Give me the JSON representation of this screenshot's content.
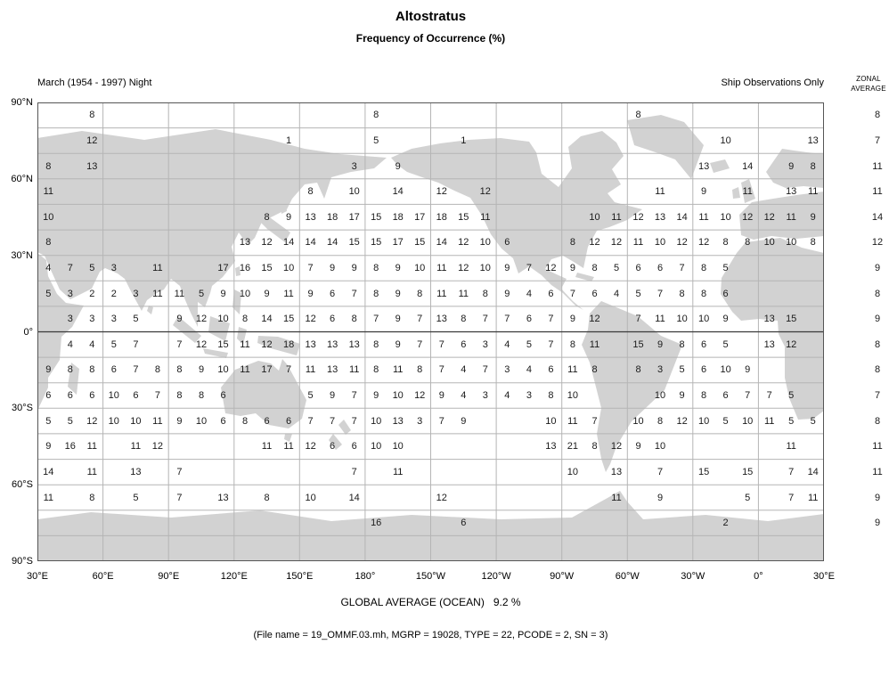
{
  "chart_data": {
    "type": "heatmap",
    "title": "Altostratus",
    "subtitle": "Frequency of Occurrence (%)",
    "period_label": "March (1954 - 1997) Night",
    "source_label": "Ship Observations Only",
    "zonal_header": {
      "line1": "ZONAL",
      "line2": "AVERAGE"
    },
    "global_average_label": "GLOBAL AVERAGE (OCEAN)   9.2 %",
    "global_average_percent": 9.2,
    "file_info": "(File name = 19_OMMF.03.mh, MGRP = 19028, TYPE = 22, PCODE = 2, SN = 3)",
    "grid": {
      "cols": 36,
      "rows": 18,
      "cell_deg": 10,
      "gridlines": "on"
    },
    "lat_ticks": [
      "90°N",
      "60°N",
      "30°N",
      "0°",
      "30°S",
      "60°S",
      "90°S"
    ],
    "lon_ticks": [
      "30°E",
      "60°E",
      "90°E",
      "120°E",
      "150°E",
      "180°",
      "150°W",
      "120°W",
      "90°W",
      "60°W",
      "30°W",
      "0°",
      "30°E"
    ],
    "zonal_averages": [
      8,
      7,
      11,
      11,
      14,
      12,
      9,
      8,
      9,
      8,
      8,
      7,
      8,
      11,
      11,
      9,
      9,
      null
    ],
    "rows": [
      [
        [
          2,
          8
        ],
        [
          15,
          8
        ],
        [
          27,
          8
        ]
      ],
      [
        [
          2,
          12
        ],
        [
          11,
          1
        ],
        [
          15,
          5
        ],
        [
          19,
          1
        ],
        [
          31,
          10
        ],
        [
          35,
          13
        ]
      ],
      [
        [
          0,
          8
        ],
        [
          2,
          13
        ],
        [
          14,
          3
        ],
        [
          16,
          9
        ],
        [
          30,
          13
        ],
        [
          32,
          14
        ],
        [
          34,
          9
        ],
        [
          35,
          8
        ]
      ],
      [
        [
          0,
          11
        ],
        [
          12,
          8
        ],
        [
          14,
          10
        ],
        [
          16,
          14
        ],
        [
          18,
          12
        ],
        [
          20,
          12
        ],
        [
          28,
          11
        ],
        [
          30,
          9
        ],
        [
          32,
          11
        ],
        [
          34,
          13
        ],
        [
          35,
          11
        ]
      ],
      [
        [
          0,
          10
        ],
        [
          10,
          8
        ],
        [
          11,
          9
        ],
        [
          12,
          13
        ],
        [
          13,
          18
        ],
        [
          14,
          17
        ],
        [
          15,
          15
        ],
        [
          16,
          18
        ],
        [
          17,
          17
        ],
        [
          18,
          18
        ],
        [
          19,
          15
        ],
        [
          20,
          11
        ],
        [
          25,
          10
        ],
        [
          26,
          11
        ],
        [
          27,
          12
        ],
        [
          28,
          13
        ],
        [
          29,
          14
        ],
        [
          30,
          11
        ],
        [
          31,
          10
        ],
        [
          32,
          12
        ],
        [
          33,
          12
        ],
        [
          34,
          11
        ],
        [
          35,
          9
        ]
      ],
      [
        [
          0,
          8
        ],
        [
          9,
          13
        ],
        [
          10,
          12
        ],
        [
          11,
          14
        ],
        [
          12,
          14
        ],
        [
          13,
          14
        ],
        [
          14,
          15
        ],
        [
          15,
          15
        ],
        [
          16,
          17
        ],
        [
          17,
          15
        ],
        [
          18,
          14
        ],
        [
          19,
          12
        ],
        [
          20,
          10
        ],
        [
          21,
          6
        ],
        [
          24,
          8
        ],
        [
          25,
          12
        ],
        [
          26,
          12
        ],
        [
          27,
          11
        ],
        [
          28,
          10
        ],
        [
          29,
          12
        ],
        [
          30,
          12
        ],
        [
          31,
          8
        ],
        [
          32,
          8
        ],
        [
          33,
          10
        ],
        [
          34,
          10
        ],
        [
          35,
          8
        ]
      ],
      [
        [
          0,
          4
        ],
        [
          1,
          7
        ],
        [
          2,
          5
        ],
        [
          3,
          3
        ],
        [
          5,
          11
        ],
        [
          8,
          17
        ],
        [
          9,
          16
        ],
        [
          10,
          15
        ],
        [
          11,
          10
        ],
        [
          12,
          7
        ],
        [
          13,
          9
        ],
        [
          14,
          9
        ],
        [
          15,
          8
        ],
        [
          16,
          9
        ],
        [
          17,
          10
        ],
        [
          18,
          11
        ],
        [
          19,
          12
        ],
        [
          20,
          10
        ],
        [
          21,
          9
        ],
        [
          22,
          7
        ],
        [
          23,
          12
        ],
        [
          24,
          9
        ],
        [
          25,
          8
        ],
        [
          26,
          5
        ],
        [
          27,
          6
        ],
        [
          28,
          6
        ],
        [
          29,
          7
        ],
        [
          30,
          8
        ],
        [
          31,
          5
        ]
      ],
      [
        [
          0,
          5
        ],
        [
          1,
          3
        ],
        [
          2,
          2
        ],
        [
          3,
          2
        ],
        [
          4,
          3
        ],
        [
          5,
          11
        ],
        [
          6,
          11
        ],
        [
          7,
          5
        ],
        [
          8,
          9
        ],
        [
          9,
          10
        ],
        [
          10,
          9
        ],
        [
          11,
          11
        ],
        [
          12,
          9
        ],
        [
          13,
          6
        ],
        [
          14,
          7
        ],
        [
          15,
          8
        ],
        [
          16,
          9
        ],
        [
          17,
          8
        ],
        [
          18,
          11
        ],
        [
          19,
          11
        ],
        [
          20,
          8
        ],
        [
          21,
          9
        ],
        [
          22,
          4
        ],
        [
          23,
          6
        ],
        [
          24,
          7
        ],
        [
          25,
          6
        ],
        [
          26,
          4
        ],
        [
          27,
          5
        ],
        [
          28,
          7
        ],
        [
          29,
          8
        ],
        [
          30,
          8
        ],
        [
          31,
          6
        ]
      ],
      [
        [
          1,
          3
        ],
        [
          2,
          3
        ],
        [
          3,
          3
        ],
        [
          4,
          5
        ],
        [
          6,
          9
        ],
        [
          7,
          12
        ],
        [
          8,
          10
        ],
        [
          9,
          8
        ],
        [
          10,
          14
        ],
        [
          11,
          15
        ],
        [
          12,
          12
        ],
        [
          13,
          6
        ],
        [
          14,
          8
        ],
        [
          15,
          7
        ],
        [
          16,
          9
        ],
        [
          17,
          7
        ],
        [
          18,
          13
        ],
        [
          19,
          8
        ],
        [
          20,
          7
        ],
        [
          21,
          7
        ],
        [
          22,
          6
        ],
        [
          23,
          7
        ],
        [
          24,
          9
        ],
        [
          25,
          12
        ],
        [
          27,
          7
        ],
        [
          28,
          11
        ],
        [
          29,
          10
        ],
        [
          30,
          10
        ],
        [
          31,
          9
        ],
        [
          33,
          13
        ],
        [
          34,
          15
        ]
      ],
      [
        [
          1,
          4
        ],
        [
          2,
          4
        ],
        [
          3,
          5
        ],
        [
          4,
          7
        ],
        [
          6,
          7
        ],
        [
          7,
          12
        ],
        [
          8,
          15
        ],
        [
          9,
          11
        ],
        [
          10,
          12
        ],
        [
          11,
          18
        ],
        [
          12,
          13
        ],
        [
          13,
          13
        ],
        [
          14,
          13
        ],
        [
          15,
          8
        ],
        [
          16,
          9
        ],
        [
          17,
          7
        ],
        [
          18,
          7
        ],
        [
          19,
          6
        ],
        [
          20,
          3
        ],
        [
          21,
          4
        ],
        [
          22,
          5
        ],
        [
          23,
          7
        ],
        [
          24,
          8
        ],
        [
          25,
          11
        ],
        [
          27,
          15
        ],
        [
          28,
          9
        ],
        [
          29,
          8
        ],
        [
          30,
          6
        ],
        [
          31,
          5
        ],
        [
          33,
          13
        ],
        [
          34,
          12
        ]
      ],
      [
        [
          0,
          9
        ],
        [
          1,
          8
        ],
        [
          2,
          8
        ],
        [
          3,
          6
        ],
        [
          4,
          7
        ],
        [
          5,
          8
        ],
        [
          6,
          8
        ],
        [
          7,
          9
        ],
        [
          8,
          10
        ],
        [
          9,
          11
        ],
        [
          10,
          17
        ],
        [
          11,
          7
        ],
        [
          12,
          11
        ],
        [
          13,
          13
        ],
        [
          14,
          11
        ],
        [
          15,
          8
        ],
        [
          16,
          11
        ],
        [
          17,
          8
        ],
        [
          18,
          7
        ],
        [
          19,
          4
        ],
        [
          20,
          7
        ],
        [
          21,
          3
        ],
        [
          22,
          4
        ],
        [
          23,
          6
        ],
        [
          24,
          11
        ],
        [
          25,
          8
        ],
        [
          27,
          8
        ],
        [
          28,
          3
        ],
        [
          29,
          5
        ],
        [
          30,
          6
        ],
        [
          31,
          10
        ],
        [
          32,
          9
        ]
      ],
      [
        [
          0,
          6
        ],
        [
          1,
          6
        ],
        [
          2,
          6
        ],
        [
          3,
          10
        ],
        [
          4,
          6
        ],
        [
          5,
          7
        ],
        [
          6,
          8
        ],
        [
          7,
          8
        ],
        [
          8,
          6
        ],
        [
          12,
          5
        ],
        [
          13,
          9
        ],
        [
          14,
          7
        ],
        [
          15,
          9
        ],
        [
          16,
          10
        ],
        [
          17,
          12
        ],
        [
          18,
          9
        ],
        [
          19,
          4
        ],
        [
          20,
          3
        ],
        [
          21,
          4
        ],
        [
          22,
          3
        ],
        [
          23,
          8
        ],
        [
          24,
          10
        ],
        [
          28,
          10
        ],
        [
          29,
          9
        ],
        [
          30,
          8
        ],
        [
          31,
          6
        ],
        [
          32,
          7
        ],
        [
          33,
          7
        ],
        [
          34,
          5
        ]
      ],
      [
        [
          0,
          5
        ],
        [
          1,
          5
        ],
        [
          2,
          12
        ],
        [
          3,
          10
        ],
        [
          4,
          10
        ],
        [
          5,
          11
        ],
        [
          6,
          9
        ],
        [
          7,
          10
        ],
        [
          8,
          6
        ],
        [
          9,
          8
        ],
        [
          10,
          6
        ],
        [
          11,
          6
        ],
        [
          12,
          7
        ],
        [
          13,
          7
        ],
        [
          14,
          7
        ],
        [
          15,
          10
        ],
        [
          16,
          13
        ],
        [
          17,
          3
        ],
        [
          18,
          7
        ],
        [
          19,
          9
        ],
        [
          23,
          10
        ],
        [
          24,
          11
        ],
        [
          25,
          7
        ],
        [
          27,
          10
        ],
        [
          28,
          8
        ],
        [
          29,
          12
        ],
        [
          30,
          10
        ],
        [
          31,
          5
        ],
        [
          32,
          10
        ],
        [
          33,
          11
        ],
        [
          34,
          5
        ],
        [
          35,
          5
        ]
      ],
      [
        [
          0,
          9
        ],
        [
          1,
          16
        ],
        [
          2,
          11
        ],
        [
          4,
          11
        ],
        [
          5,
          12
        ],
        [
          10,
          11
        ],
        [
          11,
          11
        ],
        [
          12,
          12
        ],
        [
          13,
          6
        ],
        [
          14,
          6
        ],
        [
          15,
          10
        ],
        [
          16,
          10
        ],
        [
          23,
          13
        ],
        [
          24,
          21
        ],
        [
          25,
          8
        ],
        [
          26,
          12
        ],
        [
          27,
          9
        ],
        [
          28,
          10
        ],
        [
          34,
          11
        ]
      ],
      [
        [
          0,
          14
        ],
        [
          2,
          11
        ],
        [
          4,
          13
        ],
        [
          6,
          7
        ],
        [
          14,
          7
        ],
        [
          16,
          11
        ],
        [
          24,
          10
        ],
        [
          26,
          13
        ],
        [
          28,
          7
        ],
        [
          30,
          15
        ],
        [
          32,
          15
        ],
        [
          34,
          7
        ],
        [
          35,
          14
        ]
      ],
      [
        [
          0,
          11
        ],
        [
          2,
          8
        ],
        [
          4,
          5
        ],
        [
          6,
          7
        ],
        [
          8,
          13
        ],
        [
          10,
          8
        ],
        [
          12,
          10
        ],
        [
          14,
          14
        ],
        [
          18,
          12
        ],
        [
          26,
          11
        ],
        [
          28,
          9
        ],
        [
          32,
          5
        ],
        [
          34,
          7
        ],
        [
          35,
          11
        ]
      ],
      [
        [
          15,
          16
        ],
        [
          19,
          6
        ],
        [
          31,
          2
        ]
      ],
      []
    ]
  }
}
